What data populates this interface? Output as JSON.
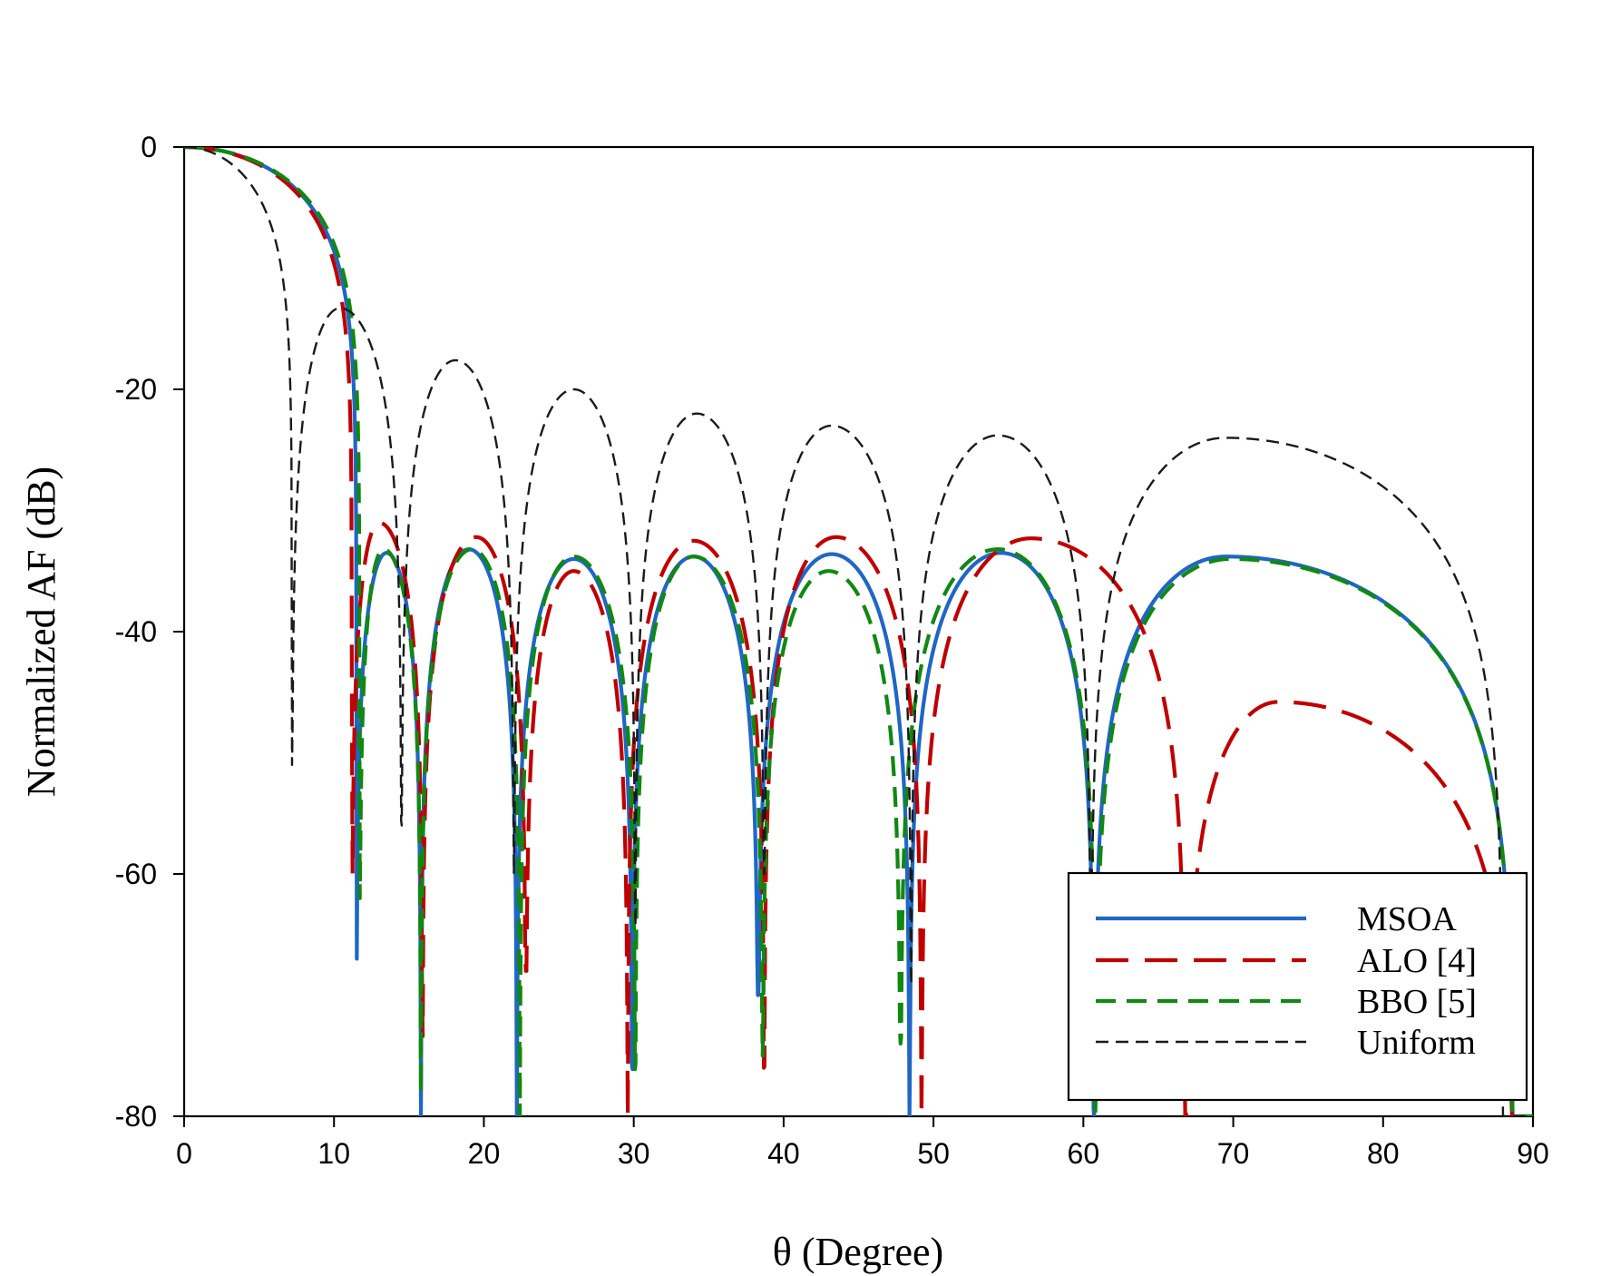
{
  "chart_data": {
    "type": "line",
    "title": "",
    "xlabel": "θ (Degree)",
    "ylabel": "Normalized AF (dB)",
    "xlim": [
      0,
      90
    ],
    "ylim": [
      -80,
      0
    ],
    "xticks": [
      0,
      10,
      20,
      30,
      40,
      50,
      60,
      70,
      80,
      90
    ],
    "yticks": [
      0,
      -20,
      -40,
      -60,
      -80
    ],
    "grid": false,
    "legend_position": "bottom-right",
    "series": [
      {
        "name": "MSOA",
        "color": "#1f66c6",
        "dash": "solid",
        "nulls": [
          11.5,
          15.8,
          22.2,
          29.9,
          38.3,
          48.4,
          60.7,
          88.7
        ],
        "peaks": [
          [
            0,
            0
          ],
          [
            13.5,
            -33.5
          ],
          [
            19,
            -33.2
          ],
          [
            26,
            -34
          ],
          [
            34,
            -33.8
          ],
          [
            43.2,
            -33.6
          ],
          [
            54.5,
            -33.5
          ],
          [
            69.5,
            -33.8
          ]
        ],
        "null_depths": [
          -67,
          -80,
          -80,
          -80,
          -70,
          -80,
          -80,
          -80
        ]
      },
      {
        "name": "ALO [4]",
        "color": "#c00000",
        "dash": "long-dash",
        "nulls": [
          11.2,
          15.9,
          22.8,
          29.6,
          38.7,
          49.2,
          66.8,
          88.8
        ],
        "peaks": [
          [
            0,
            0
          ],
          [
            13,
            -31
          ],
          [
            19.5,
            -32.2
          ],
          [
            26,
            -35
          ],
          [
            34,
            -32.5
          ],
          [
            43.5,
            -32.2
          ],
          [
            56.5,
            -32.3
          ],
          [
            73,
            -45.8
          ]
        ],
        "null_depths": [
          -60,
          -80,
          -68,
          -80,
          -77,
          -80,
          -80,
          -80
        ]
      },
      {
        "name": "BBO [5]",
        "color": "#118811",
        "dash": "dash",
        "nulls": [
          11.7,
          15.8,
          22.4,
          30.1,
          38.6,
          47.8,
          60.8,
          88.7
        ],
        "peaks": [
          [
            0,
            0
          ],
          [
            13.3,
            -33.2
          ],
          [
            19.2,
            -33.2
          ],
          [
            26,
            -33.8
          ],
          [
            34,
            -33.8
          ],
          [
            43,
            -35
          ],
          [
            54.3,
            -33.2
          ],
          [
            69.8,
            -34
          ]
        ],
        "null_depths": [
          -62,
          -78,
          -80,
          -80,
          -75,
          -74,
          -80,
          -80
        ]
      },
      {
        "name": "Uniform",
        "color": "#1a1a1a",
        "dash": "short-dash",
        "nulls": [
          7.2,
          14.5,
          22,
          30.1,
          38.7,
          48.5,
          60.5,
          88
        ],
        "peaks": [
          [
            0,
            0
          ],
          [
            10.4,
            -13.3
          ],
          [
            18.1,
            -17.6
          ],
          [
            26,
            -20
          ],
          [
            34.2,
            -22
          ],
          [
            43.2,
            -23
          ],
          [
            54.3,
            -23.8
          ],
          [
            69.5,
            -24
          ]
        ],
        "null_depths": [
          -51,
          -56,
          -60,
          -80,
          -60,
          -75,
          -60,
          -75
        ]
      }
    ]
  }
}
